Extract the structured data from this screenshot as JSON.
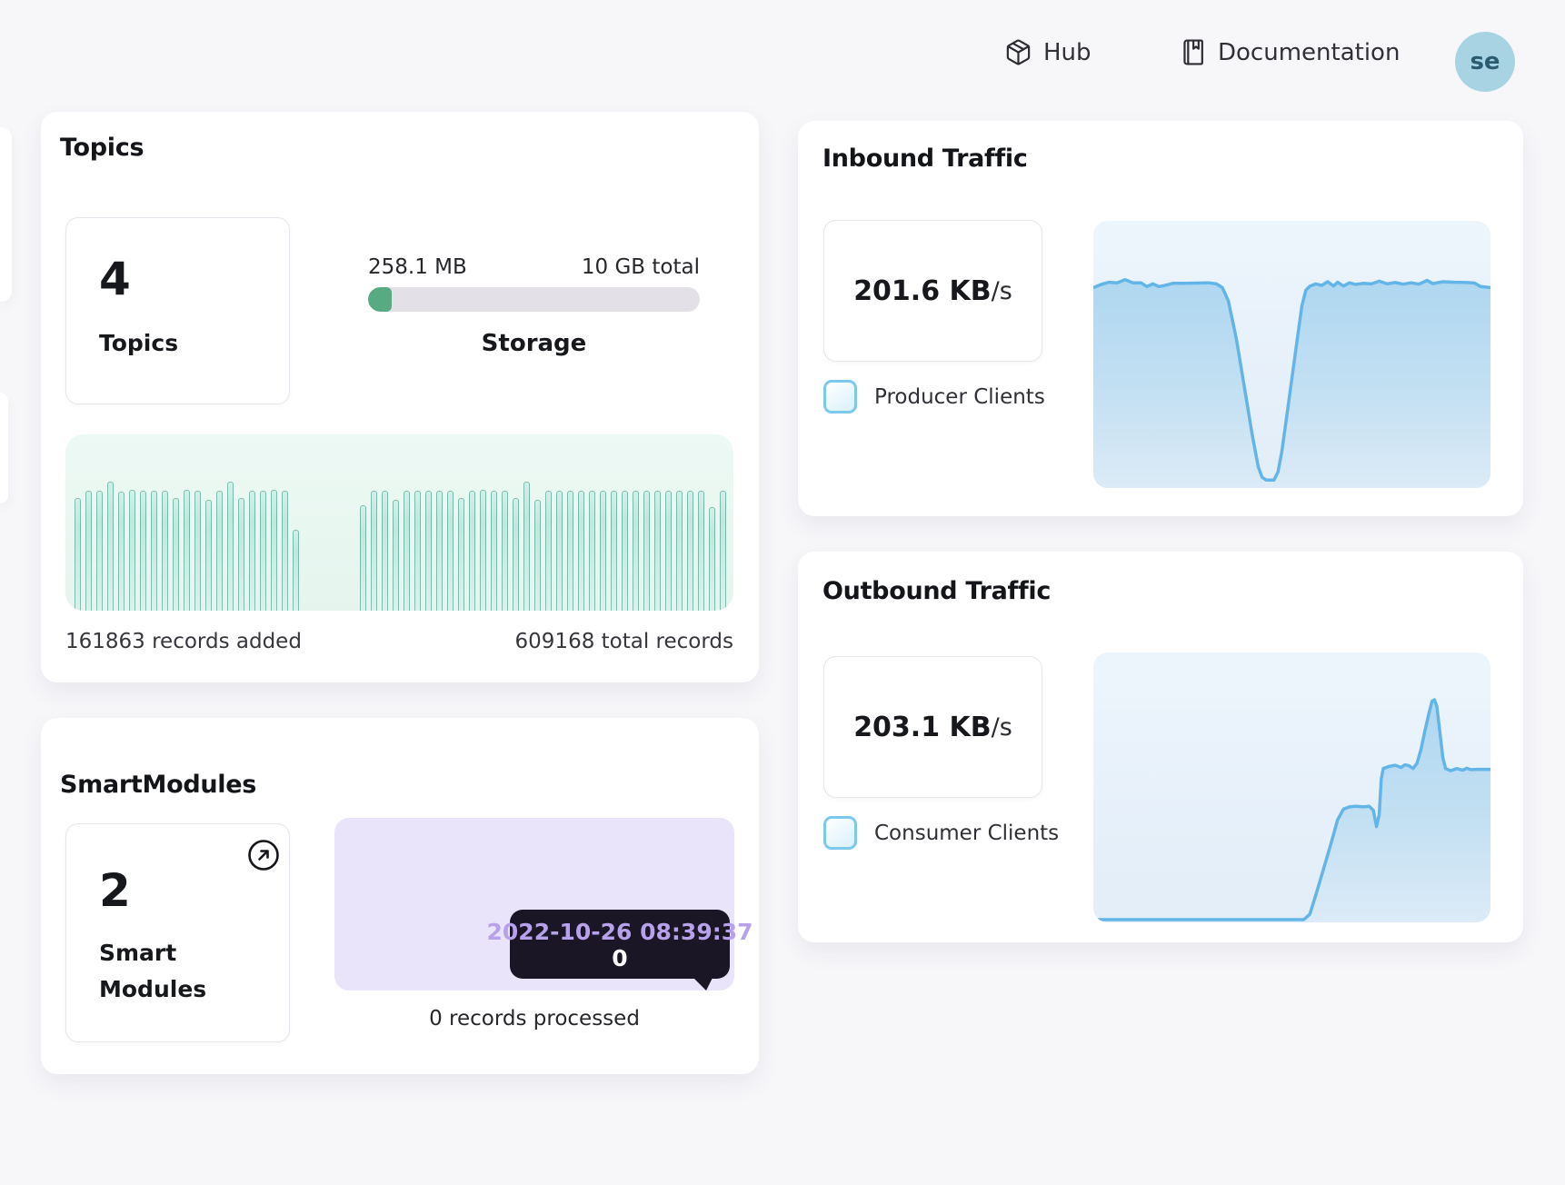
{
  "header": {
    "hub_label": "Hub",
    "documentation_label": "Documentation",
    "avatar_initials": "se"
  },
  "topics": {
    "title": "Topics",
    "count": "4",
    "count_label": "Topics",
    "storage_used": "258.1 MB",
    "storage_total": "10 GB total",
    "storage_label": "Storage",
    "records_added": "161863 records added",
    "total_records": "609168 total records"
  },
  "smartmodules": {
    "title": "SmartModules",
    "count": "2",
    "count_label_line1": "Smart",
    "count_label_line2": "Modules",
    "tooltip_date": "2022-10-26 08:39:37",
    "tooltip_value": "0",
    "caption": "0 records processed"
  },
  "inbound": {
    "title": "Inbound Traffic",
    "rate_value": "201.6 KB",
    "rate_unit": "/s",
    "legend": "Producer Clients"
  },
  "outbound": {
    "title": "Outbound Traffic",
    "rate_value": "203.1 KB",
    "rate_unit": "/s",
    "legend": "Consumer Clients"
  },
  "colors": {
    "page_bg": "#f7f7fa",
    "card_bg": "#ffffff",
    "storage_fill_green": "#57aa82",
    "storage_track": "#e3e1e7",
    "mint_chart_bg": "#e9f7f2",
    "bar_fill": "#bfe9dc",
    "bar_border": "#48988d",
    "purple_chart_bg": "#e9e4f9",
    "tooltip_bg": "#1b1626",
    "tooltip_date_text": "#b6a1ea",
    "blue_chart_bg": "#e9f2fa",
    "blue_line": "#63b5e7",
    "blue_area_top": "#aed7f0",
    "blue_area_bottom": "#dcebf7",
    "checkbox_border": "#7cc9ee",
    "avatar_bg": "#a7d3e2",
    "avatar_text": "#2a5b70"
  },
  "chart_data": [
    {
      "id": "topics-records-bars",
      "type": "bar",
      "title": "Topics records activity",
      "left_caption": "161863 records added",
      "right_caption": "609168 total records",
      "ylim": [
        0,
        1
      ],
      "grid": false,
      "groups": [
        {
          "name": "records-added",
          "heights": [
            0.87,
            0.93,
            0.93,
            1.0,
            0.92,
            0.94,
            0.93,
            0.93,
            0.93,
            0.87,
            0.94,
            0.93,
            0.86,
            0.93,
            1.0,
            0.87,
            0.93,
            0.93,
            0.94,
            0.93,
            0.63
          ]
        },
        {
          "name": "total-records",
          "heights": [
            0.82,
            0.93,
            0.93,
            0.86,
            0.93,
            0.93,
            0.93,
            0.93,
            0.93,
            0.87,
            0.93,
            0.94,
            0.93,
            0.93,
            0.87,
            1.0,
            0.86,
            0.93,
            0.93,
            0.93,
            0.93,
            0.93,
            0.93,
            0.93,
            0.93,
            0.93,
            0.93,
            0.93,
            0.93,
            0.93,
            0.93,
            0.93,
            0.8,
            0.93
          ]
        }
      ]
    },
    {
      "id": "inbound-traffic",
      "type": "area",
      "title": "Inbound Traffic",
      "current_rate_kb_s": 201.6,
      "legend": "Producer Clients",
      "grid": false,
      "points_pct": [
        [
          0,
          25
        ],
        [
          2,
          23.8
        ],
        [
          4,
          23
        ],
        [
          6,
          23.2
        ],
        [
          8,
          22
        ],
        [
          10,
          23.2
        ],
        [
          12,
          23.2
        ],
        [
          13.5,
          24.6
        ],
        [
          15,
          23.6
        ],
        [
          16.5,
          24.6
        ],
        [
          18,
          24.2
        ],
        [
          20,
          23.4
        ],
        [
          23,
          23.4
        ],
        [
          26,
          23.3
        ],
        [
          29,
          23.2
        ],
        [
          31,
          23.6
        ],
        [
          32.5,
          25
        ],
        [
          34,
          30
        ],
        [
          36,
          44
        ],
        [
          38,
          62
        ],
        [
          40,
          80
        ],
        [
          41.5,
          92
        ],
        [
          42.5,
          96
        ],
        [
          43.5,
          97
        ],
        [
          45.5,
          97
        ],
        [
          46.5,
          94
        ],
        [
          47.5,
          86
        ],
        [
          49,
          70
        ],
        [
          51,
          48
        ],
        [
          52.5,
          32
        ],
        [
          53.5,
          26
        ],
        [
          54.5,
          24.5
        ],
        [
          56,
          23.6
        ],
        [
          57.5,
          24.2
        ],
        [
          59,
          22.8
        ],
        [
          60.5,
          24.4
        ],
        [
          61.5,
          23
        ],
        [
          63,
          24.4
        ],
        [
          64.5,
          23.2
        ],
        [
          66,
          23.8
        ],
        [
          68,
          23.4
        ],
        [
          70,
          23.6
        ],
        [
          72,
          22.6
        ],
        [
          74,
          23.6
        ],
        [
          76,
          23.1
        ],
        [
          78,
          23.7
        ],
        [
          80,
          23.2
        ],
        [
          82,
          23.7
        ],
        [
          84,
          22.3
        ],
        [
          85.5,
          23.5
        ],
        [
          88,
          22.8
        ],
        [
          91,
          23
        ],
        [
          94,
          23.1
        ],
        [
          96,
          23.3
        ],
        [
          97.5,
          24.6
        ],
        [
          100,
          25
        ]
      ]
    },
    {
      "id": "outbound-traffic",
      "type": "area",
      "title": "Outbound Traffic",
      "current_rate_kb_s": 203.1,
      "legend": "Consumer Clients",
      "grid": false,
      "points_pct": [
        [
          0,
          99
        ],
        [
          53,
          99
        ],
        [
          54.5,
          97
        ],
        [
          56,
          90
        ],
        [
          58,
          80
        ],
        [
          60,
          70
        ],
        [
          61.5,
          62
        ],
        [
          63,
          58
        ],
        [
          64.5,
          57.2
        ],
        [
          66,
          57
        ],
        [
          68,
          57.2
        ],
        [
          69.5,
          57
        ],
        [
          70.5,
          58.5
        ],
        [
          71.3,
          64.5
        ],
        [
          72,
          60
        ],
        [
          72.5,
          47
        ],
        [
          73,
          43
        ],
        [
          74.5,
          42.2
        ],
        [
          76,
          41.8
        ],
        [
          77.5,
          42.6
        ],
        [
          78.5,
          41.6
        ],
        [
          79.5,
          42
        ],
        [
          80.5,
          43
        ],
        [
          81.5,
          41
        ],
        [
          82.5,
          36
        ],
        [
          83.5,
          29
        ],
        [
          84.5,
          22.5
        ],
        [
          85.3,
          18
        ],
        [
          85.9,
          17.5
        ],
        [
          86.5,
          20
        ],
        [
          87.3,
          30
        ],
        [
          88,
          39
        ],
        [
          88.7,
          43
        ],
        [
          90,
          43.8
        ],
        [
          91.5,
          43
        ],
        [
          93,
          43.6
        ],
        [
          94,
          42.9
        ],
        [
          95,
          43.4
        ],
        [
          97,
          43.3
        ],
        [
          100,
          43.3
        ]
      ]
    },
    {
      "id": "smartmodules-processed",
      "type": "area",
      "title": "SmartModules records processed",
      "points_pct": [],
      "tooltip": {
        "timestamp": "2022-10-26 08:39:37",
        "value": 0
      },
      "caption": "0 records processed"
    }
  ]
}
